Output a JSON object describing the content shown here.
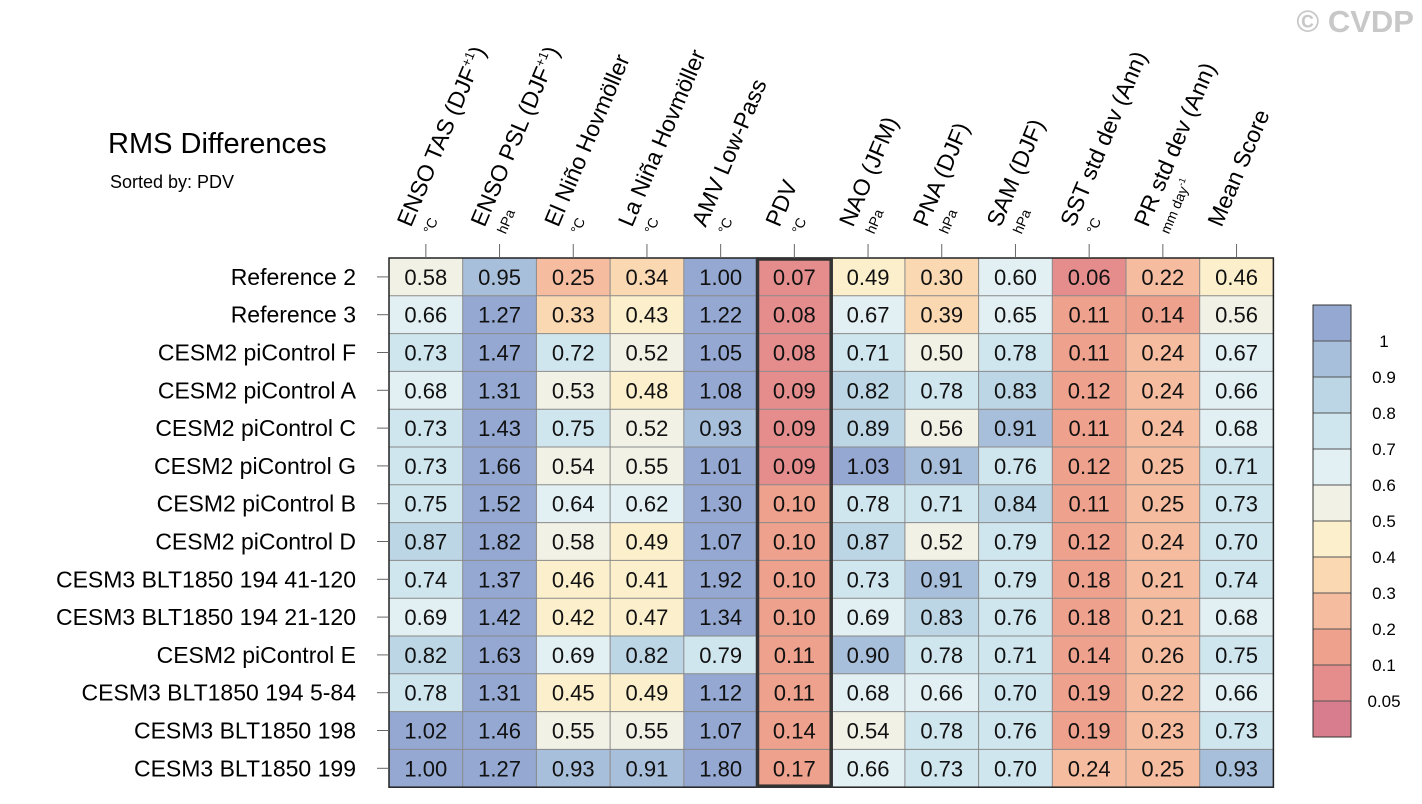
{
  "watermark": "© CVDP",
  "chart_data": {
    "type": "heatmap",
    "title": "RMS Differences",
    "subtitle": "Sorted by: PDV",
    "sorted_by": "PDV",
    "highlight_column": "PDV",
    "columns": [
      {
        "label": "ENSO TAS (DJF",
        "sup": "+1",
        "close": ")",
        "unit": "°C"
      },
      {
        "label": "ENSO PSL (DJF",
        "sup": "+1",
        "close": ")",
        "unit": "hPa"
      },
      {
        "label": "El Niño Hovmöller",
        "unit": "°C"
      },
      {
        "label": "La Niña Hovmöller",
        "unit": "°C"
      },
      {
        "label": "AMV Low-Pass",
        "unit": "°C"
      },
      {
        "label": "PDV",
        "unit": "°C"
      },
      {
        "label": "NAO (JFM)",
        "unit": "hPa"
      },
      {
        "label": "PNA (DJF)",
        "unit": "hPa"
      },
      {
        "label": "SAM (DJF)",
        "unit": "hPa"
      },
      {
        "label": "SST std dev (Ann)",
        "unit": "°C"
      },
      {
        "label": "PR std dev (Ann)",
        "unit": "mm day",
        "unit_sup": "-1"
      },
      {
        "label": "Mean Score",
        "unit": ""
      }
    ],
    "rows": [
      {
        "name": "Reference 2",
        "values": [
          "0.58",
          "0.95",
          "0.25",
          "0.34",
          "1.00",
          "0.07",
          "0.49",
          "0.30",
          "0.60",
          "0.06",
          "0.22",
          "0.46"
        ]
      },
      {
        "name": "Reference 3",
        "values": [
          "0.66",
          "1.27",
          "0.33",
          "0.43",
          "1.22",
          "0.08",
          "0.67",
          "0.39",
          "0.65",
          "0.11",
          "0.14",
          "0.56"
        ]
      },
      {
        "name": "CESM2 piControl F",
        "values": [
          "0.73",
          "1.47",
          "0.72",
          "0.52",
          "1.05",
          "0.08",
          "0.71",
          "0.50",
          "0.78",
          "0.11",
          "0.24",
          "0.67"
        ]
      },
      {
        "name": "CESM2 piControl A",
        "values": [
          "0.68",
          "1.31",
          "0.53",
          "0.48",
          "1.08",
          "0.09",
          "0.82",
          "0.78",
          "0.83",
          "0.12",
          "0.24",
          "0.66"
        ]
      },
      {
        "name": "CESM2 piControl C",
        "values": [
          "0.73",
          "1.43",
          "0.75",
          "0.52",
          "0.93",
          "0.09",
          "0.89",
          "0.56",
          "0.91",
          "0.11",
          "0.24",
          "0.68"
        ]
      },
      {
        "name": "CESM2 piControl G",
        "values": [
          "0.73",
          "1.66",
          "0.54",
          "0.55",
          "1.01",
          "0.09",
          "1.03",
          "0.91",
          "0.76",
          "0.12",
          "0.25",
          "0.71"
        ]
      },
      {
        "name": "CESM2 piControl B",
        "values": [
          "0.75",
          "1.52",
          "0.64",
          "0.62",
          "1.30",
          "0.10",
          "0.78",
          "0.71",
          "0.84",
          "0.11",
          "0.25",
          "0.73"
        ]
      },
      {
        "name": "CESM2 piControl D",
        "values": [
          "0.87",
          "1.82",
          "0.58",
          "0.49",
          "1.07",
          "0.10",
          "0.87",
          "0.52",
          "0.79",
          "0.12",
          "0.24",
          "0.70"
        ]
      },
      {
        "name": "CESM3 BLT1850 194 41-120",
        "values": [
          "0.74",
          "1.37",
          "0.46",
          "0.41",
          "1.92",
          "0.10",
          "0.73",
          "0.91",
          "0.79",
          "0.18",
          "0.21",
          "0.74"
        ]
      },
      {
        "name": "CESM3 BLT1850 194 21-120",
        "values": [
          "0.69",
          "1.42",
          "0.42",
          "0.47",
          "1.34",
          "0.10",
          "0.69",
          "0.83",
          "0.76",
          "0.18",
          "0.21",
          "0.68"
        ]
      },
      {
        "name": "CESM2 piControl E",
        "values": [
          "0.82",
          "1.63",
          "0.69",
          "0.82",
          "0.79",
          "0.11",
          "0.90",
          "0.78",
          "0.71",
          "0.14",
          "0.26",
          "0.75"
        ]
      },
      {
        "name": "CESM3 BLT1850 194 5-84",
        "values": [
          "0.78",
          "1.31",
          "0.45",
          "0.49",
          "1.12",
          "0.11",
          "0.68",
          "0.66",
          "0.70",
          "0.19",
          "0.22",
          "0.66"
        ]
      },
      {
        "name": "CESM3 BLT1850 198",
        "values": [
          "1.02",
          "1.46",
          "0.55",
          "0.55",
          "1.07",
          "0.14",
          "0.54",
          "0.78",
          "0.76",
          "0.19",
          "0.23",
          "0.73"
        ]
      },
      {
        "name": "CESM3 BLT1850 199",
        "values": [
          "1.00",
          "1.27",
          "0.93",
          "0.91",
          "1.80",
          "0.17",
          "0.66",
          "0.73",
          "0.70",
          "0.24",
          "0.25",
          "0.93"
        ]
      }
    ],
    "colorbar": {
      "labels": [
        "1",
        "0.9",
        "0.8",
        "0.7",
        "0.6",
        "0.5",
        "0.4",
        "0.3",
        "0.2",
        "0.1",
        "0.05"
      ],
      "levels": [
        1,
        0.9,
        0.8,
        0.7,
        0.6,
        0.5,
        0.4,
        0.3,
        0.2,
        0.1,
        0.05
      ],
      "colors": [
        "#94a8d2",
        "#a8bfdb",
        "#bcd6e5",
        "#d0e6ef",
        "#e2eff3",
        "#f2f1e6",
        "#fcf0cc",
        "#fad8b2",
        "#f6bc9f",
        "#eea18c",
        "#e58d8d",
        "#d77d8e"
      ]
    }
  }
}
